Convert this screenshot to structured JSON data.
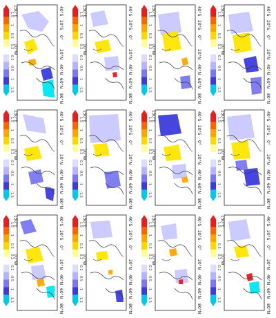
{
  "figure": {
    "panel_count": 12,
    "layout": "4 columns x 3 rows, rotated 90 degrees clockwise",
    "panels": [
      {
        "id": "a",
        "scale_labels": [
          "1.5",
          "1",
          "0.5",
          "0.2",
          "-0.2",
          "-0.5",
          "-1",
          "-1.5"
        ]
      },
      {
        "id": "b",
        "scale_labels": [
          "1.5",
          "1",
          "0.5",
          "0.2",
          "-0.2",
          "-0.5",
          "-1",
          "-1.5"
        ]
      },
      {
        "id": "c",
        "scale_labels": [
          "1.5",
          "1",
          "0.5",
          "0.2",
          "-0.2",
          "-0.5",
          "-1",
          "-1.5"
        ]
      },
      {
        "id": "d",
        "scale_labels": [
          "1.5",
          "1",
          "0.5",
          "0.2",
          "-0.2",
          "-0.5",
          "-1",
          "-1.5"
        ]
      },
      {
        "id": "e",
        "scale_labels": [
          "1.5",
          "1",
          "0.5",
          "0.2",
          "-0.2",
          "-0.5",
          "-1",
          "-1.5"
        ]
      },
      {
        "id": "f",
        "scale_labels": [
          "1.5",
          "1",
          "0.5",
          "0.2",
          "-0.2",
          "-0.5",
          "-1",
          "-1.5"
        ]
      },
      {
        "id": "g",
        "scale_labels": [
          "1.5",
          "1",
          "0.5",
          "0.2",
          "-0.2",
          "-0.5",
          "-1",
          "-1.5"
        ]
      },
      {
        "id": "h",
        "scale_labels": [
          "1.5",
          "1",
          "0.5",
          "0.2",
          "-0.2",
          "-0.5",
          "-1",
          "-1.5"
        ]
      },
      {
        "id": "i",
        "scale_labels": [
          "1.5",
          "1",
          "0.5",
          "0.2",
          "-0.2",
          "-0.5",
          "-1",
          "-1.5"
        ]
      },
      {
        "id": "j",
        "scale_labels": [
          "1.5",
          "1",
          "0.5",
          "0.2",
          "-0.2",
          "-0.5",
          "-1",
          "-1.5"
        ]
      },
      {
        "id": "k",
        "scale_labels": [
          "1.5",
          "1",
          "0.5",
          "0.2",
          "-0.2",
          "-0.5",
          "-1",
          "-1.5"
        ]
      },
      {
        "id": "l",
        "scale_labels": [
          "1.5",
          "1",
          "0.5",
          "0.2",
          "-0.2",
          "-0.5",
          "-1",
          "-1.5"
        ]
      }
    ],
    "axes": {
      "lat_labels": [
        "40°S",
        "20°S",
        "0°",
        "20°N",
        "40°N",
        "60°N",
        "80°N"
      ],
      "lon_labels": [
        "150°E",
        "10°W"
      ]
    },
    "colorbar": {
      "colors": [
        "#00c8e6",
        "#3c3cdc",
        "#7878f0",
        "#b4b4ff",
        "#dcdcff",
        "#ffffff",
        "#ffff96",
        "#ffd700",
        "#ffa500",
        "#ff6400",
        "#e61e1e"
      ]
    },
    "shading_colors": {
      "light_blue": "#c8c8ff",
      "mid_blue": "#7878f0",
      "dark_blue": "#3c3cdc",
      "cyan": "#00e6f0",
      "yellow": "#ffe600",
      "orange": "#ffa500",
      "red": "#e61e1e"
    }
  }
}
